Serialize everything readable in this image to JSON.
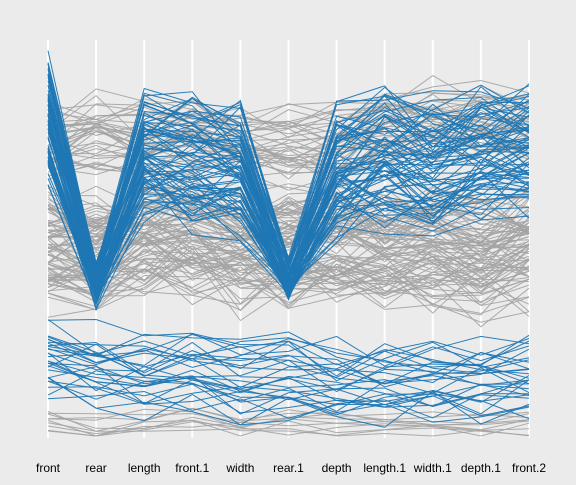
{
  "chart_data": {
    "type": "parallel_coordinates",
    "title": "",
    "xlabel": "",
    "ylabel": "",
    "axes": [
      "front",
      "rear",
      "length",
      "front.1",
      "width",
      "rear.1",
      "depth",
      "length.1",
      "width.1",
      "depth.1",
      "front.2"
    ],
    "grid": true,
    "legend": "none",
    "colors": {
      "highlight": "#1f77b4",
      "other": "#a3a3a3",
      "panel": "#ebebeb",
      "grid": "#ffffff"
    },
    "groups": [
      {
        "color": "highlight",
        "count": 80,
        "pattern": "upper-v-dip",
        "profile": [
          0.75,
          0.37,
          0.66,
          0.65,
          0.63,
          0.38,
          0.62,
          0.66,
          0.64,
          0.67,
          0.68
        ]
      },
      {
        "color": "highlight",
        "count": 30,
        "pattern": "lower-band",
        "profile": [
          0.2,
          0.18,
          0.16,
          0.17,
          0.15,
          0.16,
          0.14,
          0.14,
          0.15,
          0.15,
          0.16
        ]
      },
      {
        "color": "other",
        "count": 40,
        "pattern": "upper-band",
        "profile": [
          0.74,
          0.77,
          0.75,
          0.76,
          0.74,
          0.73,
          0.74,
          0.78,
          0.8,
          0.79,
          0.78
        ]
      },
      {
        "color": "other",
        "count": 90,
        "pattern": "middle-band",
        "profile": [
          0.47,
          0.46,
          0.5,
          0.5,
          0.47,
          0.47,
          0.48,
          0.47,
          0.47,
          0.45,
          0.48
        ]
      },
      {
        "color": "other",
        "count": 10,
        "pattern": "bottom-band",
        "profile": [
          0.04,
          0.02,
          0.04,
          0.05,
          0.03,
          0.04,
          0.04,
          0.04,
          0.03,
          0.03,
          0.04
        ]
      }
    ],
    "ylim": [
      0,
      1
    ]
  }
}
